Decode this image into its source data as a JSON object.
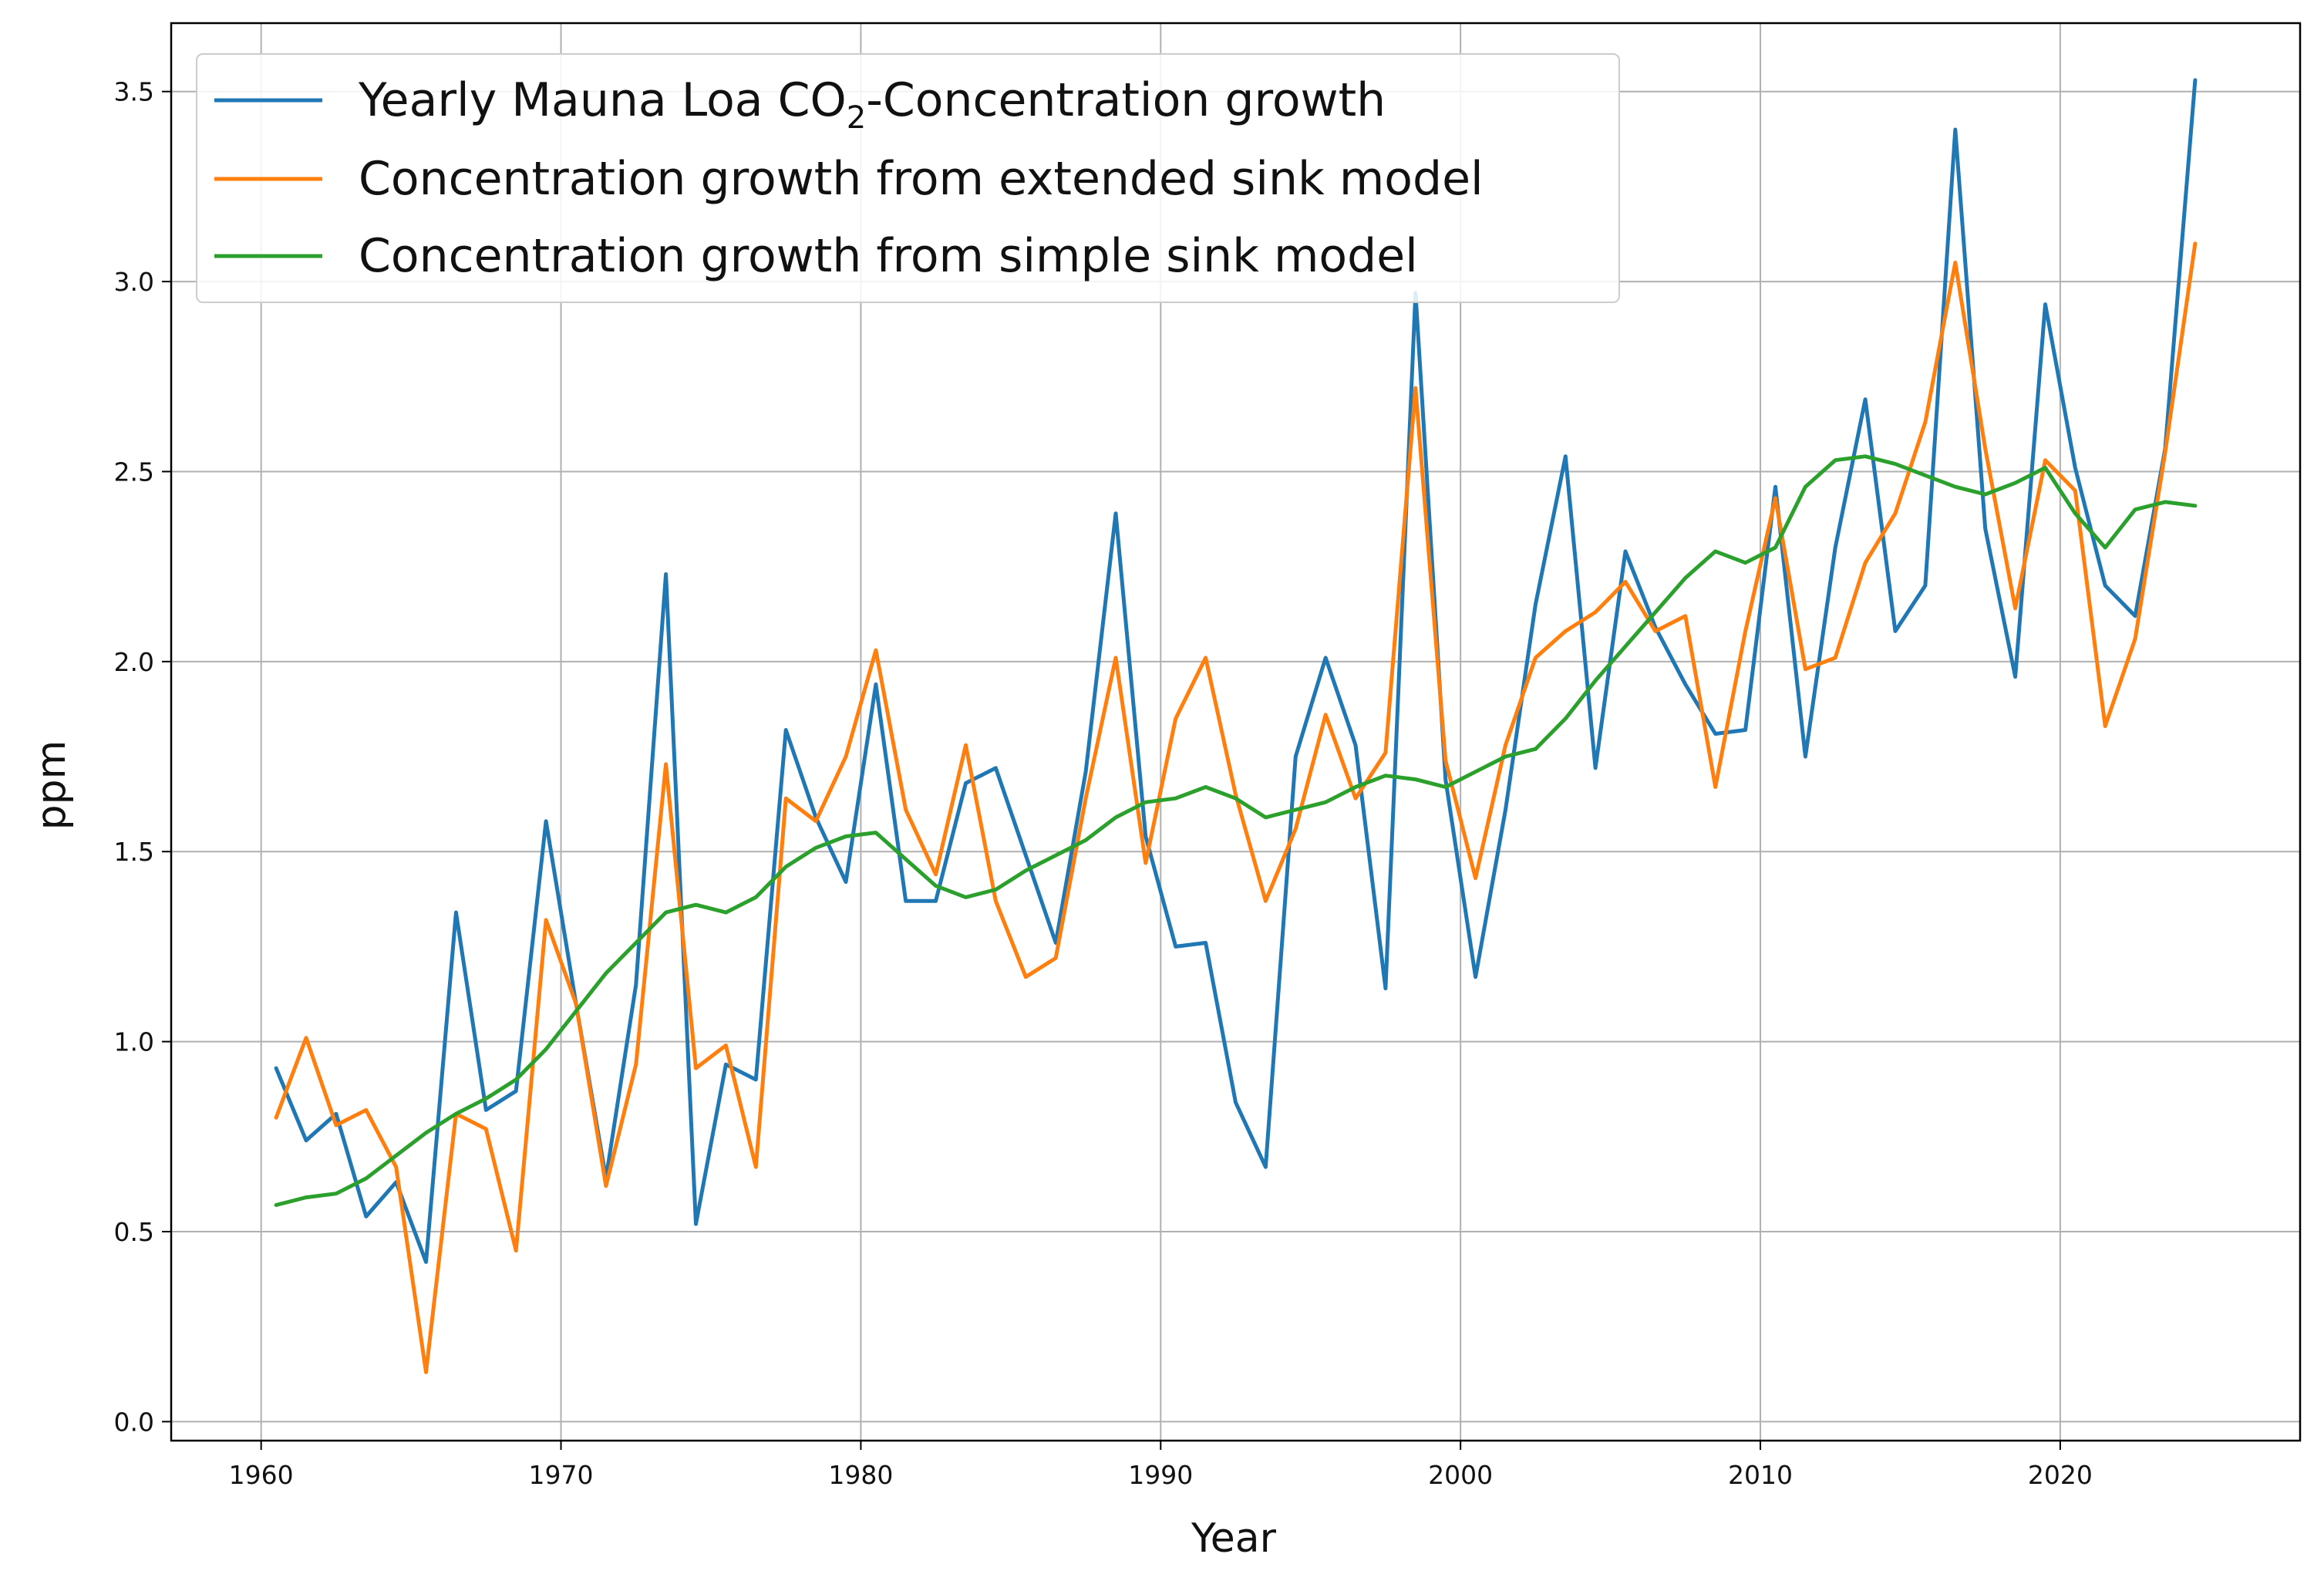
{
  "chart_data": {
    "type": "line",
    "xlabel": "Year",
    "ylabel": "ppm",
    "xlim": [
      1957,
      2028
    ],
    "ylim": [
      -0.05,
      3.68
    ],
    "grid": true,
    "legend_position": "top-left",
    "xticks": [
      1960,
      1970,
      1980,
      1990,
      2000,
      2010,
      2020
    ],
    "yticks": [
      0.0,
      0.5,
      1.0,
      1.5,
      2.0,
      2.5,
      3.0,
      3.5
    ],
    "ytick_labels": [
      "0.0",
      "0.5",
      "1.0",
      "1.5",
      "2.0",
      "2.5",
      "3.0",
      "3.5"
    ],
    "x": [
      1960.5,
      1961.5,
      1962.5,
      1963.5,
      1964.5,
      1965.5,
      1966.5,
      1967.5,
      1968.5,
      1969.5,
      1970.5,
      1971.5,
      1972.5,
      1973.5,
      1974.5,
      1975.5,
      1976.5,
      1977.5,
      1978.5,
      1979.5,
      1980.5,
      1981.5,
      1982.5,
      1983.5,
      1984.5,
      1985.5,
      1986.5,
      1987.5,
      1988.5,
      1989.5,
      1990.5,
      1991.5,
      1992.5,
      1993.5,
      1994.5,
      1995.5,
      1996.5,
      1997.5,
      1998.5,
      1999.5,
      2000.5,
      2001.5,
      2002.5,
      2003.5,
      2004.5,
      2005.5,
      2006.5,
      2007.5,
      2008.5,
      2009.5,
      2010.5,
      2011.5,
      2012.5,
      2013.5,
      2014.5,
      2015.5,
      2016.5,
      2017.5,
      2018.5,
      2019.5,
      2020.5,
      2021.5,
      2022.5,
      2023.5,
      2024.5
    ],
    "series": [
      {
        "name_parts": [
          "Yearly Mauna Loa CO",
          "2",
          "-Concentration growth"
        ],
        "color": "#1f77b4",
        "values": [
          0.93,
          0.74,
          0.81,
          0.54,
          0.63,
          0.42,
          1.34,
          0.82,
          0.87,
          1.58,
          1.1,
          0.64,
          1.15,
          2.23,
          0.52,
          0.94,
          0.9,
          1.82,
          1.59,
          1.42,
          1.94,
          1.37,
          1.37,
          1.68,
          1.72,
          1.49,
          1.26,
          1.71,
          2.39,
          1.54,
          1.25,
          1.26,
          0.84,
          0.67,
          1.75,
          2.01,
          1.78,
          1.14,
          2.97,
          1.69,
          1.17,
          1.61,
          2.15,
          2.54,
          1.72,
          2.29,
          2.09,
          1.94,
          1.81,
          1.82,
          2.46,
          1.75,
          2.3,
          2.69,
          2.08,
          2.2,
          3.4,
          2.35,
          1.96,
          2.94,
          2.51,
          2.2,
          2.12,
          2.56,
          3.53
        ]
      },
      {
        "name": "Concentration growth from extended sink model",
        "color": "#ff7f0e",
        "values": [
          0.8,
          1.01,
          0.78,
          0.82,
          0.67,
          0.13,
          0.81,
          0.77,
          0.45,
          1.32,
          1.1,
          0.62,
          0.94,
          1.73,
          0.93,
          0.99,
          0.67,
          1.64,
          1.58,
          1.75,
          2.03,
          1.61,
          1.44,
          1.78,
          1.37,
          1.17,
          1.22,
          1.64,
          2.01,
          1.47,
          1.85,
          2.01,
          1.65,
          1.37,
          1.56,
          1.86,
          1.64,
          1.76,
          2.72,
          1.74,
          1.43,
          1.78,
          2.01,
          2.08,
          2.13,
          2.21,
          2.08,
          2.12,
          1.67,
          2.08,
          2.43,
          1.98,
          2.01,
          2.26,
          2.39,
          2.63,
          3.05,
          2.56,
          2.14,
          2.53,
          2.45,
          1.83,
          2.06,
          2.55,
          3.1
        ]
      },
      {
        "name": "Concentration growth from simple sink model",
        "color": "#2ca02c",
        "values": [
          0.57,
          0.59,
          0.6,
          0.64,
          0.7,
          0.76,
          0.81,
          0.85,
          0.9,
          0.98,
          1.08,
          1.18,
          1.26,
          1.34,
          1.36,
          1.34,
          1.38,
          1.46,
          1.51,
          1.54,
          1.55,
          1.48,
          1.41,
          1.38,
          1.4,
          1.45,
          1.49,
          1.53,
          1.59,
          1.63,
          1.64,
          1.67,
          1.64,
          1.59,
          1.61,
          1.63,
          1.67,
          1.7,
          1.69,
          1.67,
          1.71,
          1.75,
          1.77,
          1.85,
          1.95,
          2.04,
          2.13,
          2.22,
          2.29,
          2.26,
          2.3,
          2.46,
          2.53,
          2.54,
          2.52,
          2.49,
          2.46,
          2.44,
          2.47,
          2.51,
          2.39,
          2.3,
          2.4,
          2.42,
          2.41
        ]
      }
    ]
  }
}
